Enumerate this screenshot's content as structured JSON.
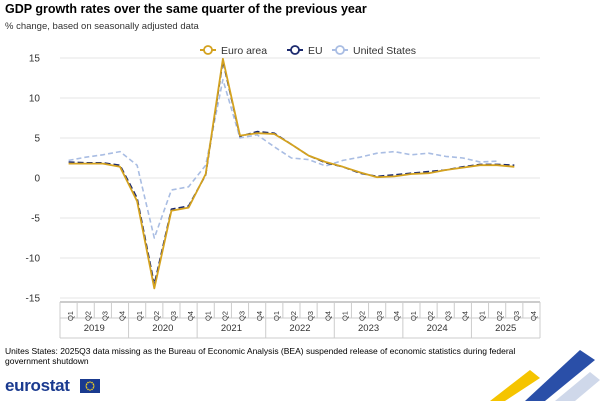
{
  "header": {
    "title": "GDP growth rates over the same quarter of the previous year",
    "subtitle": "% change, based on seasonally adjusted data"
  },
  "footer": {
    "note": "Unites States: 2025Q3 data missing as the Bureau of Economic Analysis (BEA) suspended release of economic statistics during federal government shutdown",
    "logo_text": "eurostat"
  },
  "colors": {
    "euro_area": "#d4a21f",
    "eu": "#1c2a6e",
    "united_states": "#a9bde3",
    "grid": "#e6e6e6",
    "text": "#333333"
  },
  "icons": [
    "eu-flag-icon"
  ],
  "chart_data": {
    "type": "line",
    "legend_position": "top-center",
    "grid": true,
    "ylim": [
      -15,
      15
    ],
    "yticks": [
      15,
      10,
      5,
      0,
      -5,
      -10,
      -15
    ],
    "quarter_labels": [
      "Q1",
      "Q2",
      "Q3",
      "Q4",
      "Q1",
      "Q2",
      "Q3",
      "Q4",
      "Q1",
      "Q2",
      "Q3",
      "Q4",
      "Q1",
      "Q2",
      "Q3",
      "Q4",
      "Q1",
      "Q2",
      "Q3",
      "Q4",
      "Q1",
      "Q2",
      "Q3",
      "Q4",
      "Q1",
      "Q2",
      "Q3",
      "Q4"
    ],
    "year_labels": [
      "2019",
      "2020",
      "2021",
      "2022",
      "2023",
      "2024",
      "2025"
    ],
    "series": [
      {
        "name": "Euro area",
        "style": "solid",
        "values": [
          1.8,
          1.8,
          1.8,
          1.4,
          -2.9,
          -13.8,
          -4.1,
          -3.7,
          0.5,
          14.9,
          5.3,
          5.6,
          5.5,
          4.2,
          2.8,
          2.0,
          1.4,
          0.7,
          0.1,
          0.2,
          0.5,
          0.6,
          1.0,
          1.3,
          1.6,
          1.6,
          1.4
        ]
      },
      {
        "name": "EU",
        "style": "dashed",
        "values": [
          2.0,
          1.9,
          1.9,
          1.6,
          -2.5,
          -13.3,
          -3.9,
          -3.5,
          0.4,
          14.6,
          5.2,
          5.8,
          5.6,
          4.2,
          2.8,
          1.9,
          1.4,
          0.6,
          0.2,
          0.4,
          0.6,
          0.8,
          1.0,
          1.4,
          1.7,
          1.7,
          1.6
        ]
      },
      {
        "name": "United States",
        "style": "dashed",
        "values": [
          2.2,
          2.6,
          2.9,
          3.3,
          1.6,
          -7.5,
          -1.5,
          -1.1,
          1.6,
          12.3,
          5.0,
          5.4,
          3.9,
          2.5,
          2.3,
          1.5,
          2.2,
          2.6,
          3.1,
          3.3,
          2.9,
          3.1,
          2.7,
          2.5,
          2.0,
          2.1
        ]
      }
    ]
  }
}
